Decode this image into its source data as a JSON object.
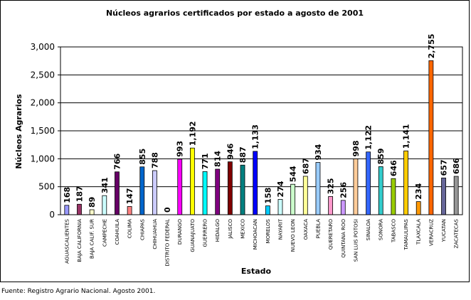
{
  "source_note": "Fuente: Registro Agrario Nacional. Agosto 2001.",
  "chart_data": {
    "type": "bar",
    "title": "Núcleos agrarios certificados por estado a agosto de 2001",
    "xlabel": "Estado",
    "ylabel": "Núcleos Agrarios",
    "ylim": [
      0,
      3000
    ],
    "yticks": [
      0,
      500,
      1000,
      1500,
      2000,
      2500,
      3000
    ],
    "ytick_labels": [
      "0",
      "500",
      "1,000",
      "1,500",
      "2,000",
      "2,500",
      "3,000"
    ],
    "grid": true,
    "categories": [
      "AGUASCALIENTES",
      "BAJA CALIFORNIA",
      "BAJA CALIF. SUR",
      "CAMPECHE",
      "COAHUILA",
      "COLIMA",
      "CHIAPAS",
      "CHIHUAHUA",
      "DISTRITO FEDERAL",
      "DURANGO",
      "GUANAJUATO",
      "GUERRERO",
      "HIDALGO",
      "JALISCO",
      "MEXICO",
      "MICHOACAN",
      "MORELOS",
      "NAYARIT",
      "NUEVO LEON",
      "OAXACA",
      "PUEBLA",
      "QUERETARO",
      "QUINTANA ROO",
      "SAN LUIS POTOSI",
      "SINALOA",
      "SONORA",
      "TABASCO",
      "TAMAULIPAS",
      "TLAXCALA",
      "VERACRUZ",
      "YUCATAN",
      "ZACATECAS"
    ],
    "values": [
      168,
      187,
      89,
      341,
      766,
      147,
      855,
      788,
      0,
      993,
      1192,
      771,
      814,
      946,
      887,
      1133,
      158,
      274,
      544,
      687,
      934,
      325,
      256,
      998,
      1122,
      859,
      646,
      1141,
      234,
      2755,
      657,
      686
    ],
    "value_labels": [
      "168",
      "187",
      "89",
      "341",
      "766",
      "147",
      "855",
      "788",
      "0",
      "993",
      "1,192",
      "771",
      "814",
      "946",
      "887",
      "1,133",
      "158",
      "274",
      "544",
      "687",
      "934",
      "325",
      "256",
      "998",
      "1,122",
      "859",
      "646",
      "1,141",
      "234",
      "2,755",
      "657",
      "686"
    ],
    "colors": [
      "#9999ff",
      "#993366",
      "#ffffcc",
      "#ccffff",
      "#660066",
      "#ff8080",
      "#0066cc",
      "#ccccff",
      "#000080",
      "#ff00ff",
      "#ffff00",
      "#00ffff",
      "#800080",
      "#800000",
      "#008080",
      "#0000ff",
      "#00ccff",
      "#ccffff",
      "#ccffcc",
      "#ffff99",
      "#99ccff",
      "#ff99cc",
      "#cc99ff",
      "#ffcc99",
      "#3366ff",
      "#33cccc",
      "#99cc00",
      "#ffcc00",
      "#ff9900",
      "#ff6600",
      "#666699",
      "#969696"
    ]
  }
}
